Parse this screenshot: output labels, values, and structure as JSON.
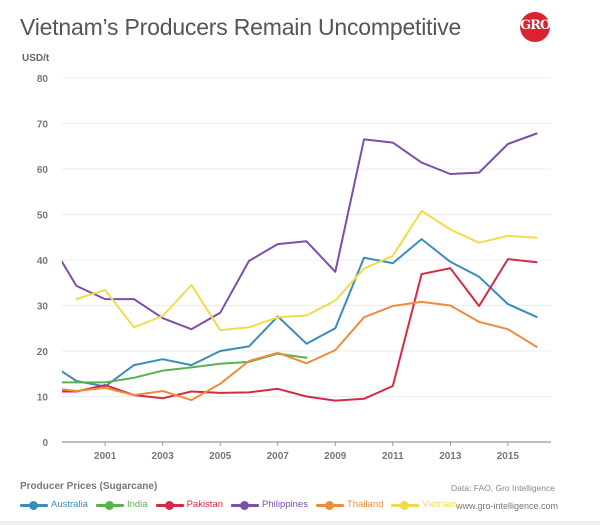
{
  "header": {
    "title": "Vietnam’s Producers Remain Uncompetitive",
    "logo_text": "GRO",
    "logo_color": "#d9232e"
  },
  "footer": {
    "chart_label": "Producer Prices (Sugarcane)",
    "source": "Data: FAO, Gro Intelligence",
    "website": "www.gro-intelligence.com"
  },
  "chart_data": {
    "type": "line",
    "title": "Vietnam’s Producers Remain Uncompetitive",
    "xlabel": "",
    "ylabel": "USD/t",
    "xlim": [
      1999.5,
      2016.5
    ],
    "ylim": [
      0,
      80
    ],
    "y_ticks": [
      0,
      10,
      20,
      30,
      40,
      50,
      60,
      70,
      80
    ],
    "x_ticks": [
      2001,
      2003,
      2005,
      2007,
      2009,
      2011,
      2013,
      2015
    ],
    "grid": true,
    "legend_position": "bottom-left",
    "series": [
      {
        "name": "Australia",
        "color": "#3a8dbb",
        "x": [
          1999,
          2000,
          2001,
          2002,
          2003,
          2004,
          2005,
          2006,
          2007,
          2008,
          2009,
          2010,
          2011,
          2012,
          2013,
          2014,
          2015,
          2016
        ],
        "values": [
          17.6,
          13.4,
          12.2,
          16.9,
          18.2,
          16.9,
          20.0,
          21.0,
          27.6,
          21.6,
          25.0,
          40.5,
          39.3,
          44.6,
          39.6,
          36.3,
          30.3,
          27.5
        ]
      },
      {
        "name": "India",
        "color": "#5cb04f",
        "x": [
          1999,
          2000,
          2001,
          2002,
          2003,
          2004,
          2005,
          2006,
          2007,
          2008
        ],
        "values": [
          13.1,
          13.1,
          13.1,
          14.1,
          15.7,
          16.4,
          17.2,
          17.6,
          19.4,
          18.5
        ]
      },
      {
        "name": "Pakistan",
        "color": "#d42a45",
        "x": [
          1999,
          2000,
          2001,
          2002,
          2003,
          2004,
          2005,
          2006,
          2007,
          2008,
          2009,
          2010,
          2011,
          2012,
          2013,
          2014,
          2015,
          2016
        ],
        "values": [
          11.1,
          11.1,
          12.5,
          10.3,
          9.6,
          11.1,
          10.8,
          10.9,
          11.7,
          10.0,
          9.1,
          9.5,
          12.3,
          36.9,
          38.2,
          29.9,
          40.2,
          39.5
        ]
      },
      {
        "name": "Philippines",
        "color": "#7b4fa8",
        "x": [
          1999,
          2000,
          2001,
          2002,
          2003,
          2004,
          2005,
          2006,
          2007,
          2008,
          2009,
          2010,
          2011,
          2012,
          2013,
          2014,
          2015,
          2016
        ],
        "values": [
          44.9,
          34.3,
          31.4,
          31.4,
          27.2,
          24.8,
          28.4,
          39.8,
          43.5,
          44.1,
          37.4,
          66.5,
          65.8,
          61.4,
          58.9,
          59.2,
          65.5,
          67.8
        ]
      },
      {
        "name": "Thailand",
        "color": "#ef8c3b",
        "x": [
          1999,
          2000,
          2001,
          2002,
          2003,
          2004,
          2005,
          2006,
          2007,
          2008,
          2009,
          2010,
          2011,
          2012,
          2013,
          2014,
          2015,
          2016
        ],
        "values": [
          12.0,
          11.2,
          11.9,
          10.3,
          11.2,
          9.2,
          12.8,
          17.8,
          19.6,
          17.3,
          20.2,
          27.4,
          29.9,
          30.8,
          30.0,
          26.4,
          24.8,
          20.9
        ]
      },
      {
        "name": "Vietnam",
        "color": "#f0dc4a",
        "x": [
          2000,
          2001,
          2002,
          2003,
          2004,
          2005,
          2006,
          2007,
          2008,
          2009,
          2010,
          2011,
          2012,
          2013,
          2014,
          2015,
          2016
        ],
        "values": [
          31.4,
          33.4,
          25.2,
          27.7,
          34.5,
          24.6,
          25.2,
          27.4,
          27.8,
          31.1,
          38.1,
          40.9,
          50.8,
          46.7,
          43.8,
          45.3,
          44.9
        ]
      }
    ]
  }
}
